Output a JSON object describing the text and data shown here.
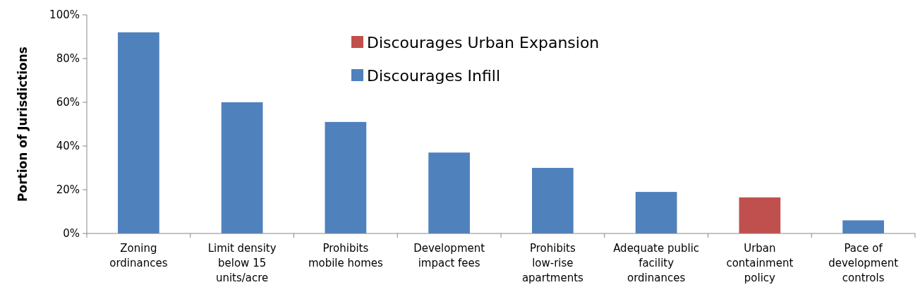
{
  "chart_data": {
    "type": "bar",
    "ylabel": "Portion of Jurisdictions",
    "categories": [
      "Zoning ordinances",
      "Limit density below 15 units/acre",
      "Prohibits mobile homes",
      "Development impact fees",
      "Prohibits low-rise apartments",
      "Adequate public facility ordinances",
      "Urban containment policy",
      "Pace of development controls"
    ],
    "series": [
      {
        "name": "Discourages Urban Expansion",
        "color": "#c0504d",
        "values": [
          null,
          null,
          null,
          null,
          null,
          null,
          16.5,
          null
        ]
      },
      {
        "name": "Discourages Infill",
        "color": "#4f81bd",
        "values": [
          92,
          60,
          51,
          37,
          30,
          19,
          null,
          6
        ]
      }
    ],
    "stacked": true,
    "ylim": [
      0,
      100
    ],
    "yticks": [
      {
        "value": 0,
        "label": "0%"
      },
      {
        "value": 20,
        "label": "20%"
      },
      {
        "value": 40,
        "label": "40%"
      },
      {
        "value": 60,
        "label": "60%"
      },
      {
        "value": 80,
        "label": "80%"
      },
      {
        "value": 100,
        "label": "100%"
      }
    ],
    "grid": false,
    "legend": "top"
  }
}
